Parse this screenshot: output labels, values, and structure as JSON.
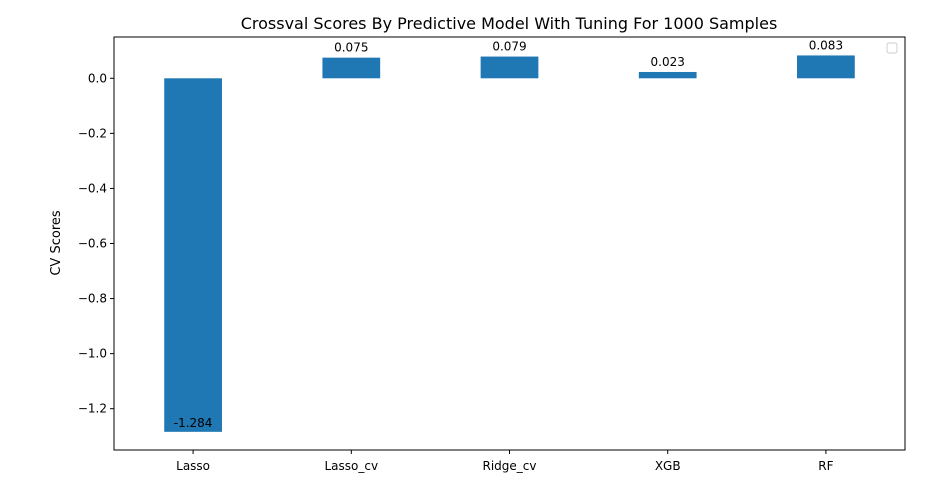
{
  "chart_data": {
    "type": "bar",
    "title": "Crossval Scores By Predictive Model With Tuning For 1000 Samples",
    "xlabel": "",
    "ylabel": "CV Scores",
    "categories": [
      "Lasso",
      "Lasso_cv",
      "Ridge_cv",
      "XGB",
      "RF"
    ],
    "values": [
      -1.284,
      0.075,
      0.079,
      0.023,
      0.083
    ],
    "data_labels": [
      "-1.284",
      "0.075",
      "0.079",
      "0.023",
      "0.083"
    ],
    "ylim": [
      -1.35,
      0.15
    ],
    "yticks": [
      0.0,
      -0.2,
      -0.4,
      -0.6,
      -0.8,
      -1.0,
      -1.2
    ],
    "ytick_labels": [
      "0.0",
      "−0.2",
      "−0.4",
      "−0.6",
      "−0.8",
      "−1.0",
      "−1.2"
    ],
    "grid": false,
    "legend": "top-right, empty",
    "bar_color": "#1f77b4"
  }
}
